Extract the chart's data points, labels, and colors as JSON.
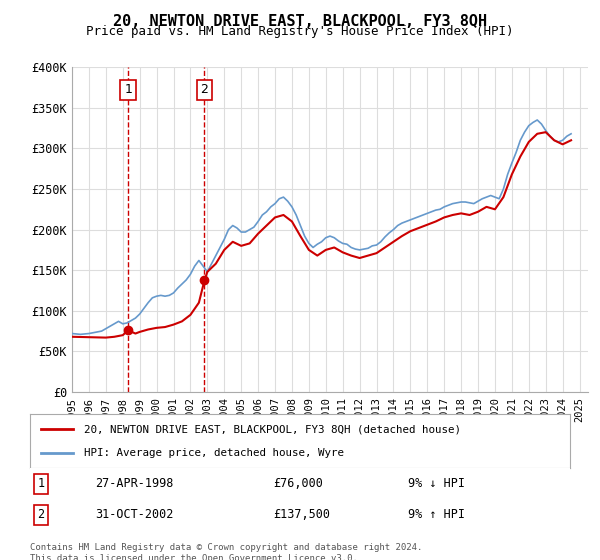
{
  "title": "20, NEWTON DRIVE EAST, BLACKPOOL, FY3 8QH",
  "subtitle": "Price paid vs. HM Land Registry's House Price Index (HPI)",
  "xlabel": "",
  "ylabel": "",
  "ylim": [
    0,
    400000
  ],
  "yticks": [
    0,
    50000,
    100000,
    150000,
    200000,
    250000,
    300000,
    350000,
    400000
  ],
  "ytick_labels": [
    "£0",
    "£50K",
    "£100K",
    "£150K",
    "£200K",
    "£250K",
    "£300K",
    "£350K",
    "£400K"
  ],
  "xlim_start": 1995.0,
  "xlim_end": 2025.5,
  "sale1_x": 1998.32,
  "sale1_y": 76000,
  "sale2_x": 2002.83,
  "sale2_y": 137500,
  "sale1_label": "27-APR-1998",
  "sale2_label": "31-OCT-2002",
  "sale1_price": "£76,000",
  "sale2_price": "£137,500",
  "sale1_hpi": "9% ↓ HPI",
  "sale2_hpi": "9% ↑ HPI",
  "line_color_red": "#cc0000",
  "line_color_blue": "#6699cc",
  "bg_color": "#ffffff",
  "grid_color": "#dddddd",
  "legend_label_red": "20, NEWTON DRIVE EAST, BLACKPOOL, FY3 8QH (detached house)",
  "legend_label_blue": "HPI: Average price, detached house, Wyre",
  "footer": "Contains HM Land Registry data © Crown copyright and database right 2024.\nThis data is licensed under the Open Government Licence v3.0.",
  "hpi_data_x": [
    1995.0,
    1995.25,
    1995.5,
    1995.75,
    1996.0,
    1996.25,
    1996.5,
    1996.75,
    1997.0,
    1997.25,
    1997.5,
    1997.75,
    1998.0,
    1998.25,
    1998.5,
    1998.75,
    1999.0,
    1999.25,
    1999.5,
    1999.75,
    2000.0,
    2000.25,
    2000.5,
    2000.75,
    2001.0,
    2001.25,
    2001.5,
    2001.75,
    2002.0,
    2002.25,
    2002.5,
    2002.75,
    2003.0,
    2003.25,
    2003.5,
    2003.75,
    2004.0,
    2004.25,
    2004.5,
    2004.75,
    2005.0,
    2005.25,
    2005.5,
    2005.75,
    2006.0,
    2006.25,
    2006.5,
    2006.75,
    2007.0,
    2007.25,
    2007.5,
    2007.75,
    2008.0,
    2008.25,
    2008.5,
    2008.75,
    2009.0,
    2009.25,
    2009.5,
    2009.75,
    2010.0,
    2010.25,
    2010.5,
    2010.75,
    2011.0,
    2011.25,
    2011.5,
    2011.75,
    2012.0,
    2012.25,
    2012.5,
    2012.75,
    2013.0,
    2013.25,
    2013.5,
    2013.75,
    2014.0,
    2014.25,
    2014.5,
    2014.75,
    2015.0,
    2015.25,
    2015.5,
    2015.75,
    2016.0,
    2016.25,
    2016.5,
    2016.75,
    2017.0,
    2017.25,
    2017.5,
    2017.75,
    2018.0,
    2018.25,
    2018.5,
    2018.75,
    2019.0,
    2019.25,
    2019.5,
    2019.75,
    2020.0,
    2020.25,
    2020.5,
    2020.75,
    2021.0,
    2021.25,
    2021.5,
    2021.75,
    2022.0,
    2022.25,
    2022.5,
    2022.75,
    2023.0,
    2023.25,
    2023.5,
    2023.75,
    2024.0,
    2024.25,
    2024.5
  ],
  "hpi_data_y": [
    72000,
    71500,
    71000,
    71500,
    72000,
    73000,
    74000,
    75000,
    78000,
    81000,
    84000,
    87000,
    84000,
    85000,
    88000,
    91000,
    96000,
    103000,
    110000,
    116000,
    118000,
    119000,
    118000,
    119000,
    122000,
    128000,
    133000,
    138000,
    145000,
    155000,
    162000,
    155000,
    148000,
    158000,
    168000,
    178000,
    188000,
    200000,
    205000,
    202000,
    197000,
    197000,
    200000,
    203000,
    210000,
    218000,
    222000,
    228000,
    232000,
    238000,
    240000,
    235000,
    228000,
    218000,
    205000,
    192000,
    183000,
    178000,
    182000,
    185000,
    190000,
    192000,
    190000,
    186000,
    183000,
    182000,
    178000,
    176000,
    175000,
    176000,
    177000,
    180000,
    181000,
    185000,
    191000,
    196000,
    200000,
    205000,
    208000,
    210000,
    212000,
    214000,
    216000,
    218000,
    220000,
    222000,
    224000,
    225000,
    228000,
    230000,
    232000,
    233000,
    234000,
    234000,
    233000,
    232000,
    235000,
    238000,
    240000,
    242000,
    240000,
    238000,
    250000,
    268000,
    282000,
    295000,
    310000,
    320000,
    328000,
    332000,
    335000,
    330000,
    322000,
    315000,
    310000,
    308000,
    310000,
    315000,
    318000
  ],
  "price_paid_x": [
    1995.0,
    1996.0,
    1997.0,
    1997.5,
    1998.0,
    1998.32,
    1998.75,
    1999.0,
    1999.5,
    2000.0,
    2000.5,
    2001.0,
    2001.5,
    2002.0,
    2002.5,
    2002.83,
    2003.0,
    2003.5,
    2004.0,
    2004.5,
    2005.0,
    2005.5,
    2006.0,
    2006.5,
    2007.0,
    2007.5,
    2008.0,
    2008.5,
    2009.0,
    2009.5,
    2010.0,
    2010.5,
    2011.0,
    2011.5,
    2012.0,
    2012.5,
    2013.0,
    2013.5,
    2014.0,
    2014.5,
    2015.0,
    2015.5,
    2016.0,
    2016.5,
    2017.0,
    2017.5,
    2018.0,
    2018.5,
    2019.0,
    2019.5,
    2020.0,
    2020.5,
    2021.0,
    2021.5,
    2022.0,
    2022.5,
    2023.0,
    2023.5,
    2024.0,
    2024.5
  ],
  "price_paid_y": [
    68000,
    67500,
    67000,
    68000,
    70000,
    76000,
    72000,
    74000,
    77000,
    79000,
    80000,
    83000,
    87000,
    95000,
    110000,
    137500,
    148000,
    158000,
    175000,
    185000,
    180000,
    183000,
    195000,
    205000,
    215000,
    218000,
    210000,
    192000,
    175000,
    168000,
    175000,
    178000,
    172000,
    168000,
    165000,
    168000,
    171000,
    178000,
    185000,
    192000,
    198000,
    202000,
    206000,
    210000,
    215000,
    218000,
    220000,
    218000,
    222000,
    228000,
    225000,
    240000,
    268000,
    290000,
    308000,
    318000,
    320000,
    310000,
    305000,
    310000
  ]
}
